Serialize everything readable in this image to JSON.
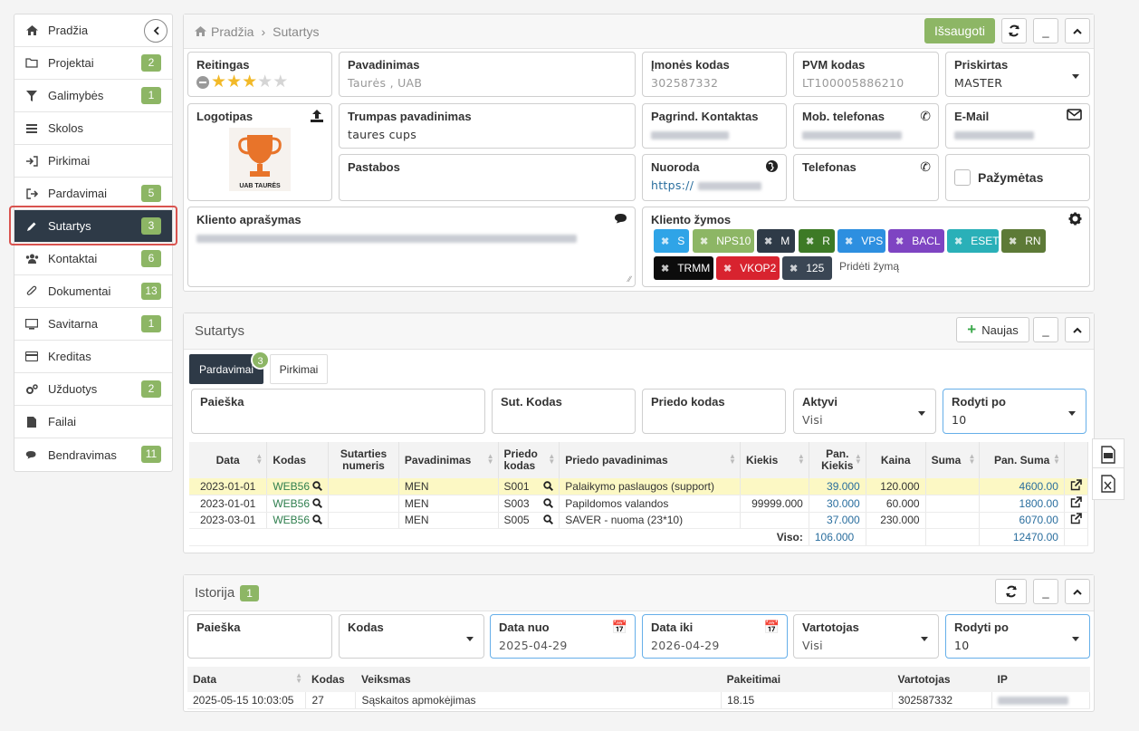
{
  "sidebar": {
    "items": [
      {
        "label": "Pradžia",
        "icon": "home-icon",
        "badge": ""
      },
      {
        "label": "Projektai",
        "icon": "folder-icon",
        "badge": "2"
      },
      {
        "label": "Galimybės",
        "icon": "filter-icon",
        "badge": "1"
      },
      {
        "label": "Skolos",
        "icon": "list-icon",
        "badge": ""
      },
      {
        "label": "Pirkimai",
        "icon": "sign-in-icon",
        "badge": ""
      },
      {
        "label": "Pardavimai",
        "icon": "sign-out-icon",
        "badge": "5"
      },
      {
        "label": "Sutartys",
        "icon": "pencil-icon",
        "badge": "3"
      },
      {
        "label": "Kontaktai",
        "icon": "users-icon",
        "badge": "6"
      },
      {
        "label": "Dokumentai",
        "icon": "paperclip-icon",
        "badge": "13"
      },
      {
        "label": "Savitarna",
        "icon": "monitor-icon",
        "badge": "1"
      },
      {
        "label": "Kreditas",
        "icon": "credit-card-icon",
        "badge": ""
      },
      {
        "label": "Užduotys",
        "icon": "cogs-icon",
        "badge": "2"
      },
      {
        "label": "Failai",
        "icon": "file-icon",
        "badge": ""
      },
      {
        "label": "Bendravimas",
        "icon": "comments-icon",
        "badge": "11"
      }
    ],
    "active_index": 6
  },
  "header": {
    "breadcrumb_home": "Pradžia",
    "breadcrumb_sep": "›",
    "breadcrumb_current": "Sutartys",
    "save_label": "Išsaugoti",
    "minimize_label": "_",
    "collapse_label": "^"
  },
  "client": {
    "rating_label": "Reitingas",
    "rating_value": 3,
    "rating_max": 5,
    "name_label": "Pavadinimas",
    "name_value": "Taurės , UAB",
    "company_code_label": "Įmonės kodas",
    "company_code_value": "302587332",
    "vat_label": "PVM kodas",
    "vat_value": "LT100005886210",
    "assigned_label": "Priskirtas",
    "assigned_value": "MASTER",
    "logo_label": "Logotipas",
    "logo_text": "UAB TAURĖS",
    "short_name_label": "Trumpas pavadinimas",
    "short_name_value": "taures cups",
    "main_contact_label": "Pagrind. Kontaktas",
    "mobile_label": "Mob. telefonas",
    "email_label": "E-Mail",
    "notes_label": "Pastabos",
    "link_label": "Nuoroda",
    "link_value": "https://",
    "phone_label": "Telefonas",
    "marked_label": "Pažymėtas",
    "description_label": "Kliento aprašymas",
    "tags_label": "Kliento žymos",
    "add_tag_label": "Pridėti žymą",
    "tags": [
      {
        "label": "S",
        "color": "#2fa4e7"
      },
      {
        "label": "NPS10",
        "color": "#8db665"
      },
      {
        "label": "M",
        "color": "#2e3a47"
      },
      {
        "label": "R",
        "color": "#3d7a26"
      },
      {
        "label": "VPS",
        "color": "#2d8fe0"
      },
      {
        "label": "BACL",
        "color": "#7e44c2"
      },
      {
        "label": "ESET",
        "color": "#2ab0b8"
      },
      {
        "label": "RN",
        "color": "#5d7a37"
      },
      {
        "label": "TRMM",
        "color": "#0c0c0c"
      },
      {
        "label": "VKOP2",
        "color": "#d8232f"
      },
      {
        "label": "125",
        "color": "#3a4654"
      }
    ]
  },
  "contracts": {
    "title": "Sutartys",
    "new_label": "Naujas",
    "tabs": [
      {
        "label": "Pardavimai",
        "badge": "3"
      },
      {
        "label": "Pirkimai",
        "badge": ""
      }
    ],
    "filters": {
      "search_label": "Paieška",
      "code_label": "Sut. Kodas",
      "appendix_label": "Priedo kodas",
      "active_label": "Aktyvi",
      "active_value": "Visi",
      "page_size_label": "Rodyti po",
      "page_size_value": "10"
    },
    "columns": [
      "Data",
      "Kodas",
      "Sutarties numeris",
      "Pavadinimas",
      "Priedo kodas",
      "Priedo pavadinimas",
      "Kiekis",
      "Pan. Kiekis",
      "Kaina",
      "Suma",
      "Pan. Suma"
    ],
    "rows": [
      {
        "date": "2023-01-01",
        "code": "WEB56",
        "number": "",
        "name": "MEN",
        "app_code": "S001",
        "app_name": "Palaikymo paslaugos (support)",
        "qty": "",
        "pan_qty": "39.000",
        "price": "120.000",
        "sum": "",
        "pan_sum": "4600.00"
      },
      {
        "date": "2023-01-01",
        "code": "WEB56",
        "number": "",
        "name": "MEN",
        "app_code": "S003",
        "app_name": "Papildomos valandos",
        "qty": "99999.000",
        "pan_qty": "30.000",
        "price": "60.000",
        "sum": "",
        "pan_sum": "1800.00"
      },
      {
        "date": "2023-03-01",
        "code": "WEB56",
        "number": "",
        "name": "MEN",
        "app_code": "S005",
        "app_name": "SAVER - nuoma (23*10)",
        "qty": "",
        "pan_qty": "37.000",
        "price": "230.000",
        "sum": "",
        "pan_sum": "6070.00"
      }
    ],
    "total_label": "Viso:",
    "total_pan_qty": "106.000",
    "total_pan_sum": "12470.00"
  },
  "history": {
    "title": "Istorija",
    "badge": "1",
    "filters": {
      "search_label": "Paieška",
      "code_label": "Kodas",
      "date_from_label": "Data nuo",
      "date_from_value": "2025-04-29",
      "date_to_label": "Data iki",
      "date_to_value": "2026-04-29",
      "user_label": "Vartotojas",
      "user_value": "Visi",
      "page_size_label": "Rodyti po",
      "page_size_value": "10"
    },
    "columns": [
      "Data",
      "Kodas",
      "Veiksmas",
      "Pakeitimai",
      "Vartotojas",
      "IP"
    ],
    "rows": [
      {
        "date": "2025-05-15 10:03:05",
        "code": "27",
        "action": "Sąskaitos apmokėjimas",
        "changes": "18.15",
        "user": "302587332",
        "ip": ""
      }
    ]
  }
}
